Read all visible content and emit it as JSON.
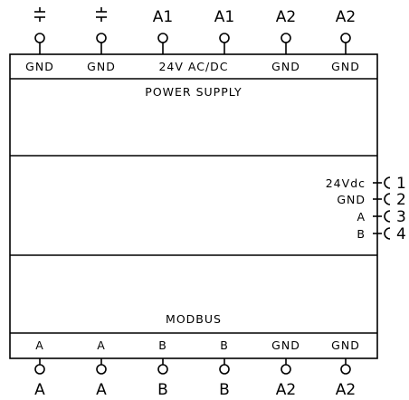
{
  "top_terminals": [
    {
      "label": "",
      "cell": "GND",
      "symbol": "ground-icon"
    },
    {
      "label": "",
      "cell": "GND",
      "symbol": "ground-icon"
    },
    {
      "label": "A1",
      "cell": ""
    },
    {
      "label": "A1",
      "cell": ""
    },
    {
      "label": "A2",
      "cell": "GND"
    },
    {
      "label": "A2",
      "cell": "GND"
    }
  ],
  "top_merged_cell": "24V AC/DC",
  "power_supply_label": "POWER SUPPLY",
  "modbus_label": "MODBUS",
  "side_connector": [
    {
      "name": "24Vdc",
      "pin": "1"
    },
    {
      "name": "GND",
      "pin": "2"
    },
    {
      "name": "A",
      "pin": "3"
    },
    {
      "name": "B",
      "pin": "4"
    }
  ],
  "bottom_terminals": [
    {
      "cell": "A",
      "label": "A"
    },
    {
      "cell": "A",
      "label": "A"
    },
    {
      "cell": "B",
      "label": "B"
    },
    {
      "cell": "B",
      "label": "B"
    },
    {
      "cell": "GND",
      "label": "A2"
    },
    {
      "cell": "GND",
      "label": "A2"
    }
  ]
}
